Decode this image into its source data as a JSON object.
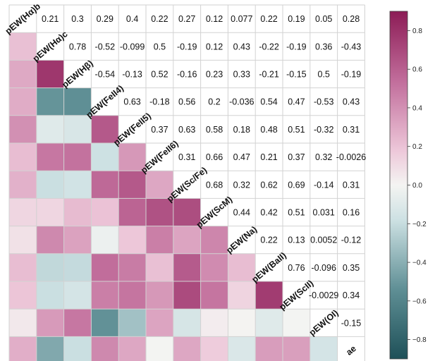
{
  "chart_data": {
    "type": "heatmap",
    "labels": [
      "pEW(Hα)b",
      "pEW(Hα)c",
      "pEW(Hβ)",
      "pEW(FeII4)",
      "pEW(FeII5)",
      "pEW(FeII6)",
      "pEW(Sc/Fe)",
      "pEW(ScM)",
      "pEW(Na)",
      "pEW(BaII)",
      "pEW(ScII)",
      "pEW(OI)",
      "ae"
    ],
    "upper_text": [
      [
        "0.21",
        "0.3",
        "0.29",
        "0.4",
        "0.22",
        "0.27",
        "0.12",
        "0.077",
        "0.22",
        "0.19",
        "0.05",
        "0.28"
      ],
      [
        "0.78",
        "-0.52",
        "-0.099",
        "0.5",
        "-0.19",
        "0.12",
        "0.43",
        "-0.22",
        "-0.19",
        "0.36",
        "-0.43"
      ],
      [
        "-0.54",
        "-0.13",
        "0.52",
        "-0.16",
        "0.23",
        "0.33",
        "-0.21",
        "-0.15",
        "0.5",
        "-0.19"
      ],
      [
        "0.63",
        "-0.18",
        "0.56",
        "0.2",
        "-0.036",
        "0.54",
        "0.47",
        "-0.53",
        "0.43"
      ],
      [
        "0.37",
        "0.63",
        "0.58",
        "0.18",
        "0.48",
        "0.51",
        "-0.32",
        "0.31"
      ],
      [
        "0.31",
        "0.66",
        "0.47",
        "0.21",
        "0.37",
        "0.32",
        "-0.0026"
      ],
      [
        "0.68",
        "0.32",
        "0.62",
        "0.69",
        "-0.14",
        "0.31"
      ],
      [
        "0.44",
        "0.42",
        "0.51",
        "0.031",
        "0.16"
      ],
      [
        "0.22",
        "0.13",
        "0.0052",
        "-0.12"
      ],
      [
        "0.76",
        "-0.096",
        "0.35"
      ],
      [
        "-0.0029",
        "0.34"
      ],
      [
        "-0.15"
      ],
      []
    ],
    "lower_values": [
      [],
      [
        0.21
      ],
      [
        0.3,
        0.78
      ],
      [
        0.29,
        -0.52,
        -0.54
      ],
      [
        0.4,
        -0.099,
        -0.13,
        0.63
      ],
      [
        0.22,
        0.5,
        0.52,
        -0.18,
        0.37
      ],
      [
        0.27,
        -0.19,
        -0.16,
        0.56,
        0.63,
        0.31
      ],
      [
        0.12,
        0.12,
        0.23,
        0.2,
        0.58,
        0.66,
        0.68
      ],
      [
        0.077,
        0.43,
        0.33,
        -0.036,
        0.18,
        0.47,
        0.32,
        0.44
      ],
      [
        0.22,
        -0.22,
        -0.21,
        0.54,
        0.48,
        0.21,
        0.62,
        0.42,
        0.22
      ],
      [
        0.19,
        -0.19,
        -0.15,
        0.47,
        0.51,
        0.37,
        0.69,
        0.51,
        0.13,
        0.76
      ],
      [
        0.05,
        0.36,
        0.5,
        -0.53,
        -0.32,
        0.32,
        -0.14,
        0.031,
        0.0052,
        -0.096,
        -0.0029
      ],
      [
        0.28,
        -0.43,
        -0.19,
        0.43,
        0.31,
        -0.0026,
        0.31,
        0.16,
        -0.12,
        0.35,
        0.34,
        -0.15
      ]
    ],
    "colorbar": {
      "ticks": [
        "0.8",
        "0.6",
        "0.4",
        "0.2",
        "0.0",
        "−0.2",
        "−0.4",
        "−0.6",
        "−0.8"
      ],
      "tick_values": [
        0.8,
        0.6,
        0.4,
        0.2,
        0.0,
        -0.2,
        -0.4,
        -0.6,
        -0.8
      ],
      "range": [
        -0.9,
        0.9
      ]
    },
    "colors": {
      "negative": "#1e5058",
      "neutral": "#f4f4f2",
      "positive": "#8c1c56",
      "grid": "#d2d2d2"
    }
  }
}
